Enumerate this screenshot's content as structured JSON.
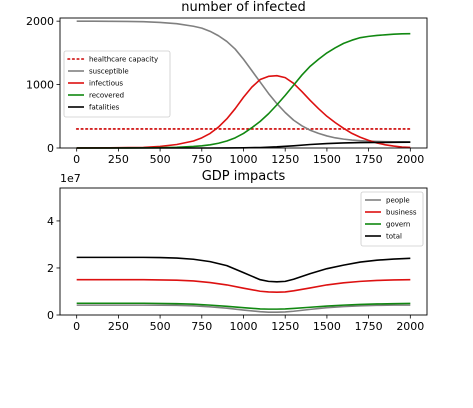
{
  "chart_data": [
    {
      "type": "line",
      "title": "number of infected",
      "xlabel": "",
      "ylabel": "",
      "xlim": [
        -100,
        2100
      ],
      "ylim": [
        0,
        2050
      ],
      "xticks": [
        "0",
        "250",
        "500",
        "750",
        "1000",
        "1250",
        "1500",
        "1750",
        "2000"
      ],
      "xtick_values": [
        0,
        250,
        500,
        750,
        1000,
        1250,
        1500,
        1750,
        2000
      ],
      "yticks": [
        "0",
        "1000",
        "2000"
      ],
      "ytick_values": [
        0,
        1000,
        2000
      ],
      "grid": false,
      "legend_position": "center-left",
      "series": [
        {
          "name": "healthcare capacity",
          "color": "#cc0000",
          "style": "dotted",
          "x": [
            0,
            2000
          ],
          "y": [
            300,
            300
          ]
        },
        {
          "name": "susceptible",
          "color": "#808080",
          "style": "solid",
          "x": [
            0,
            100,
            200,
            300,
            400,
            500,
            600,
            700,
            750,
            800,
            850,
            900,
            950,
            1000,
            1050,
            1100,
            1150,
            1200,
            1250,
            1300,
            1350,
            1400,
            1450,
            1500,
            1550,
            1600,
            1650,
            1700,
            1750,
            1800,
            1850,
            1900,
            1950,
            2000
          ],
          "y": [
            1999,
            1999,
            1998,
            1996,
            1992,
            1980,
            1960,
            1920,
            1890,
            1840,
            1770,
            1680,
            1560,
            1400,
            1220,
            1040,
            860,
            700,
            560,
            440,
            350,
            280,
            230,
            190,
            160,
            140,
            125,
            115,
            108,
            103,
            100,
            98,
            97,
            96
          ]
        },
        {
          "name": "infectious",
          "color": "#dd1111",
          "style": "solid",
          "x": [
            0,
            200,
            400,
            500,
            600,
            700,
            750,
            800,
            850,
            900,
            950,
            1000,
            1050,
            1100,
            1150,
            1200,
            1250,
            1300,
            1350,
            1400,
            1450,
            1500,
            1550,
            1600,
            1650,
            1700,
            1750,
            1800,
            1850,
            1900,
            1950,
            2000
          ],
          "y": [
            1,
            3,
            10,
            25,
            55,
            110,
            160,
            230,
            330,
            460,
            620,
            800,
            960,
            1080,
            1130,
            1140,
            1110,
            1020,
            890,
            750,
            620,
            500,
            400,
            310,
            230,
            170,
            120,
            80,
            50,
            30,
            15,
            10
          ]
        },
        {
          "name": "recovered",
          "color": "#118811",
          "style": "solid",
          "x": [
            0,
            200,
            400,
            500,
            600,
            700,
            750,
            800,
            850,
            900,
            950,
            1000,
            1050,
            1100,
            1150,
            1200,
            1250,
            1300,
            1350,
            1400,
            1450,
            1500,
            1550,
            1600,
            1650,
            1700,
            1750,
            1800,
            1850,
            1900,
            1950,
            2000
          ],
          "y": [
            0,
            0,
            2,
            5,
            12,
            25,
            35,
            50,
            75,
            110,
            160,
            230,
            320,
            420,
            540,
            680,
            830,
            990,
            1150,
            1290,
            1400,
            1500,
            1580,
            1650,
            1700,
            1740,
            1760,
            1775,
            1785,
            1795,
            1800,
            1802
          ]
        },
        {
          "name": "fatalities",
          "color": "#000000",
          "style": "solid",
          "x": [
            0,
            800,
            900,
            1000,
            1100,
            1200,
            1300,
            1400,
            1500,
            1600,
            1700,
            1800,
            1900,
            2000
          ],
          "y": [
            0,
            0,
            1,
            3,
            8,
            18,
            35,
            55,
            70,
            80,
            85,
            88,
            90,
            91
          ]
        }
      ]
    },
    {
      "type": "line",
      "title": "GDP impacts",
      "xlabel": "",
      "ylabel": "",
      "y_offset_label": "1e7",
      "xlim": [
        -100,
        2100
      ],
      "ylim": [
        0,
        5.4
      ],
      "xticks": [
        "0",
        "250",
        "500",
        "750",
        "1000",
        "1250",
        "1500",
        "1750",
        "2000"
      ],
      "xtick_values": [
        0,
        250,
        500,
        750,
        1000,
        1250,
        1500,
        1750,
        2000
      ],
      "yticks": [
        "0",
        "2",
        "4"
      ],
      "ytick_values": [
        0,
        2,
        4
      ],
      "grid": false,
      "legend_position": "upper-right",
      "series": [
        {
          "name": "people",
          "color": "#808080",
          "style": "solid",
          "x": [
            0,
            200,
            400,
            600,
            700,
            800,
            900,
            1000,
            1100,
            1150,
            1200,
            1250,
            1300,
            1400,
            1500,
            1600,
            1700,
            1800,
            1900,
            2000
          ],
          "y": [
            0.42,
            0.42,
            0.42,
            0.41,
            0.39,
            0.35,
            0.29,
            0.21,
            0.14,
            0.12,
            0.12,
            0.13,
            0.16,
            0.24,
            0.31,
            0.36,
            0.39,
            0.41,
            0.42,
            0.42
          ]
        },
        {
          "name": "business",
          "color": "#dd1111",
          "style": "solid",
          "x": [
            0,
            200,
            400,
            600,
            700,
            800,
            900,
            1000,
            1100,
            1150,
            1200,
            1250,
            1300,
            1400,
            1500,
            1600,
            1700,
            1800,
            1900,
            2000
          ],
          "y": [
            1.5,
            1.5,
            1.5,
            1.48,
            1.45,
            1.38,
            1.28,
            1.14,
            1.01,
            0.98,
            0.97,
            0.98,
            1.03,
            1.15,
            1.28,
            1.37,
            1.43,
            1.47,
            1.49,
            1.5
          ]
        },
        {
          "name": "govern",
          "color": "#118811",
          "style": "solid",
          "x": [
            0,
            200,
            400,
            600,
            700,
            800,
            900,
            1000,
            1100,
            1150,
            1200,
            1250,
            1300,
            1400,
            1500,
            1600,
            1700,
            1800,
            1900,
            2000
          ],
          "y": [
            0.5,
            0.5,
            0.5,
            0.48,
            0.46,
            0.42,
            0.37,
            0.31,
            0.26,
            0.25,
            0.25,
            0.26,
            0.28,
            0.33,
            0.38,
            0.42,
            0.45,
            0.47,
            0.48,
            0.49
          ]
        },
        {
          "name": "total",
          "color": "#000000",
          "style": "solid",
          "x": [
            0,
            200,
            400,
            500,
            600,
            700,
            800,
            900,
            1000,
            1050,
            1100,
            1150,
            1200,
            1250,
            1300,
            1400,
            1500,
            1600,
            1700,
            1800,
            1900,
            2000
          ],
          "y": [
            2.45,
            2.45,
            2.45,
            2.44,
            2.42,
            2.37,
            2.27,
            2.1,
            1.8,
            1.65,
            1.5,
            1.43,
            1.41,
            1.43,
            1.52,
            1.76,
            1.97,
            2.12,
            2.25,
            2.33,
            2.38,
            2.41
          ]
        }
      ]
    }
  ]
}
